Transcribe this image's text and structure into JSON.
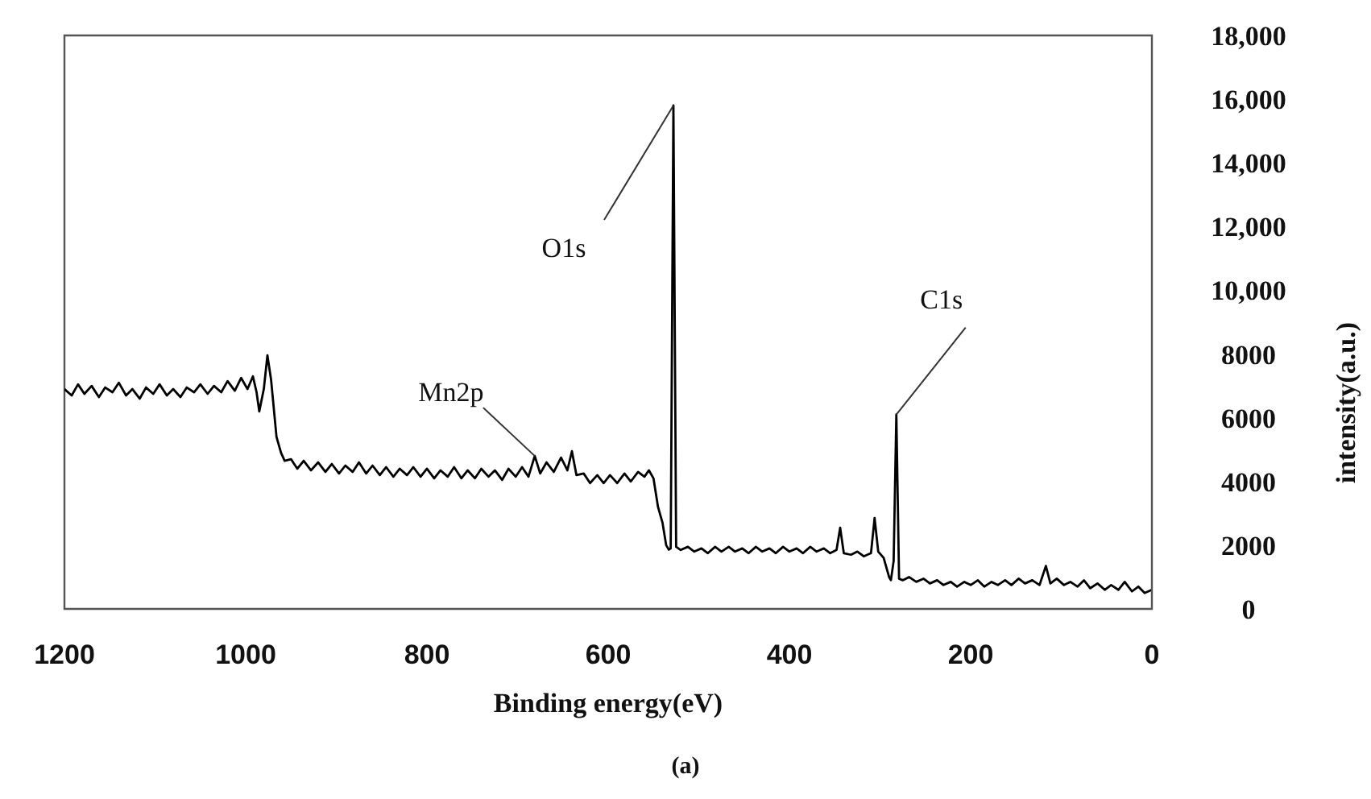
{
  "chart_data": {
    "type": "line",
    "xlabel": "Binding energy(eV)",
    "ylabel": "intensity(a.u.)",
    "xlim": [
      1200,
      0
    ],
    "xticks": [
      1200,
      1000,
      800,
      600,
      400,
      200,
      0
    ],
    "ylim": [
      0,
      18000
    ],
    "yticks": [
      0,
      2000,
      4000,
      6000,
      8000,
      {
        "value": 10000,
        "label": "10,000"
      },
      {
        "value": 12000,
        "label": "12,000"
      },
      {
        "value": 14000,
        "label": "14,000"
      },
      {
        "value": 16000,
        "label": "16,000"
      },
      {
        "value": 18000,
        "label": "18,000"
      }
    ],
    "marker": "none",
    "line_style": "solid",
    "x": [
      1200,
      1192,
      1185,
      1178,
      1170,
      1162,
      1155,
      1147,
      1140,
      1132,
      1125,
      1117,
      1110,
      1102,
      1095,
      1087,
      1080,
      1072,
      1065,
      1057,
      1050,
      1042,
      1035,
      1027,
      1020,
      1012,
      1005,
      998,
      992,
      988,
      985,
      980,
      976,
      972,
      966,
      961,
      957,
      950,
      943,
      936,
      928,
      920,
      912,
      905,
      897,
      890,
      882,
      875,
      867,
      860,
      852,
      845,
      837,
      830,
      822,
      815,
      807,
      800,
      792,
      785,
      777,
      770,
      762,
      755,
      747,
      740,
      732,
      725,
      717,
      710,
      702,
      695,
      688,
      681,
      675,
      668,
      660,
      652,
      645,
      640,
      635,
      627,
      620,
      612,
      605,
      598,
      590,
      582,
      575,
      567,
      560,
      555,
      550,
      545,
      540,
      536,
      533,
      531,
      528,
      525,
      520,
      512,
      505,
      497,
      490,
      482,
      475,
      467,
      460,
      452,
      445,
      437,
      430,
      422,
      415,
      407,
      400,
      392,
      385,
      377,
      370,
      362,
      355,
      348,
      344,
      340,
      332,
      325,
      318,
      310,
      306,
      302,
      296,
      290,
      288,
      285,
      282,
      279,
      275,
      268,
      260,
      252,
      245,
      237,
      230,
      222,
      215,
      207,
      200,
      192,
      185,
      177,
      170,
      162,
      155,
      147,
      140,
      132,
      124,
      117,
      112,
      105,
      97,
      90,
      82,
      75,
      68,
      60,
      52,
      45,
      37,
      30,
      22,
      15,
      8,
      0
    ],
    "series": [
      {
        "color": "#000000",
        "values": [
          6900,
          6700,
          7050,
          6750,
          7000,
          6650,
          6950,
          6800,
          7100,
          6700,
          6900,
          6600,
          6950,
          6750,
          7050,
          6700,
          6900,
          6650,
          6950,
          6800,
          7050,
          6750,
          7000,
          6800,
          7150,
          6850,
          7250,
          6900,
          7300,
          6800,
          6200,
          6900,
          7960,
          7200,
          5400,
          4900,
          4650,
          4700,
          4400,
          4650,
          4350,
          4600,
          4300,
          4550,
          4250,
          4500,
          4300,
          4600,
          4250,
          4500,
          4200,
          4450,
          4150,
          4400,
          4200,
          4450,
          4150,
          4400,
          4100,
          4350,
          4150,
          4450,
          4100,
          4350,
          4100,
          4400,
          4150,
          4350,
          4050,
          4400,
          4150,
          4450,
          4150,
          4800,
          4250,
          4600,
          4300,
          4750,
          4350,
          4950,
          4200,
          4250,
          3950,
          4200,
          3950,
          4200,
          3950,
          4250,
          4000,
          4300,
          4150,
          4350,
          4100,
          3200,
          2700,
          2000,
          1860,
          1900,
          15800,
          1950,
          1850,
          1950,
          1800,
          1900,
          1750,
          1950,
          1800,
          1950,
          1800,
          1900,
          1750,
          1950,
          1800,
          1900,
          1750,
          1950,
          1800,
          1900,
          1750,
          1950,
          1800,
          1900,
          1750,
          1850,
          2550,
          1750,
          1700,
          1800,
          1650,
          1750,
          2850,
          1800,
          1600,
          1000,
          900,
          1500,
          6100,
          950,
          900,
          1000,
          850,
          950,
          800,
          900,
          750,
          850,
          700,
          850,
          750,
          900,
          700,
          850,
          750,
          900,
          750,
          950,
          800,
          900,
          750,
          1350,
          800,
          950,
          750,
          850,
          700,
          900,
          650,
          800,
          600,
          750,
          600,
          850,
          550,
          700,
          500,
          600
        ]
      }
    ],
    "annotations": [
      {
        "text": "O1s",
        "x": 528,
        "y": 15800
      },
      {
        "text": "C1s",
        "x": 282,
        "y": 6100
      },
      {
        "text": "Mn2p",
        "x": 681,
        "y": 4800
      },
      "(a)"
    ]
  }
}
